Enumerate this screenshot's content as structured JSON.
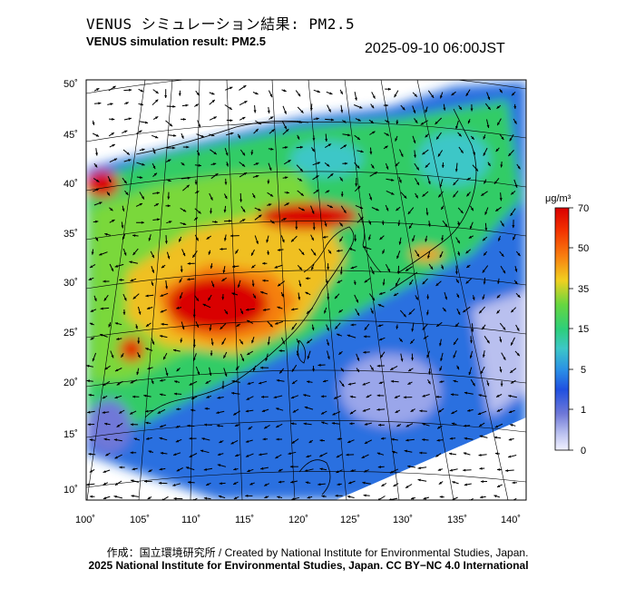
{
  "header": {
    "title_jp": "VENUS シミュレーション結果: PM2.5",
    "title_en": "VENUS simulation result: PM2.5",
    "timestamp": "2025-09-10 06:00JST"
  },
  "map": {
    "lat_labels": [
      "50˚",
      "45˚",
      "40˚",
      "35˚",
      "30˚",
      "25˚",
      "20˚",
      "15˚",
      "10˚"
    ],
    "lon_labels": [
      "100˚",
      "105˚",
      "110˚",
      "115˚",
      "120˚",
      "125˚",
      "130˚",
      "135˚",
      "140˚"
    ],
    "lat_range": [
      10,
      50
    ],
    "lon_range": [
      100,
      140
    ],
    "variable": "PM2.5",
    "arrows": "wind vectors"
  },
  "colorbar": {
    "unit_label": "μg/m³",
    "ticks": [
      "70",
      "50",
      "35",
      "15",
      "5",
      "1",
      "0"
    ],
    "colors": [
      "#d90000",
      "#f23000",
      "#f87f10",
      "#f0d020",
      "#66d640",
      "#2dcf7a",
      "#3dc7c7",
      "#2a8fe6",
      "#2050e0",
      "#6f78d8",
      "#b9c0ef",
      "#f2f2ff"
    ]
  },
  "footer": {
    "credit_jp": "作成：国立環境研究所 / Created by National Institute for Environmental Studies, Japan.",
    "copyright": "2025 National Institute for Environmental Studies, Japan. CC BY−NC 4.0 International"
  }
}
